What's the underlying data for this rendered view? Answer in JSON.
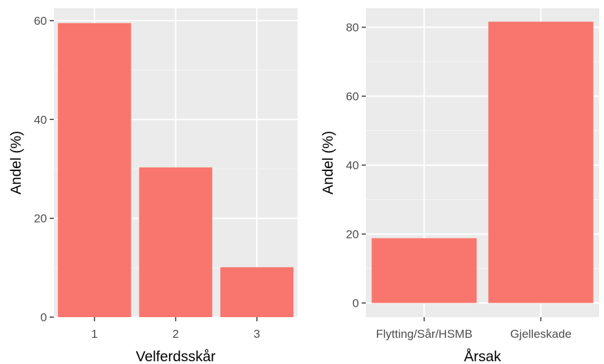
{
  "colors": {
    "bar": "#f8766d",
    "panel_bg": "#ebebeb",
    "grid_major": "#ffffff",
    "grid_minor": "#f5f5f5",
    "tick_text": "#4d4d4d",
    "tick_mark": "#333333"
  },
  "chart_data": [
    {
      "type": "bar",
      "categories": [
        "1",
        "2",
        "3"
      ],
      "values": [
        59.5,
        30.3,
        10.1
      ],
      "xlabel": "Velferdsskår",
      "ylabel": "Andel (%)",
      "ylim": [
        0,
        62.5
      ],
      "yticks": [
        0,
        20,
        40,
        60
      ],
      "ytick_labels": [
        "0",
        "20",
        "40",
        "60"
      ],
      "grid": true,
      "legend": "none"
    },
    {
      "type": "bar",
      "categories": [
        "Flytting/Sår/HSMB",
        "Gjelleskade"
      ],
      "values": [
        18.8,
        81.6
      ],
      "xlabel": "Årsak",
      "ylabel": "Andel (%)",
      "ylim": [
        -4.1,
        85.5
      ],
      "yticks": [
        0,
        20,
        40,
        60,
        80
      ],
      "ytick_labels": [
        "0",
        "20",
        "40",
        "60",
        "80"
      ],
      "grid": true,
      "legend": "none"
    }
  ]
}
